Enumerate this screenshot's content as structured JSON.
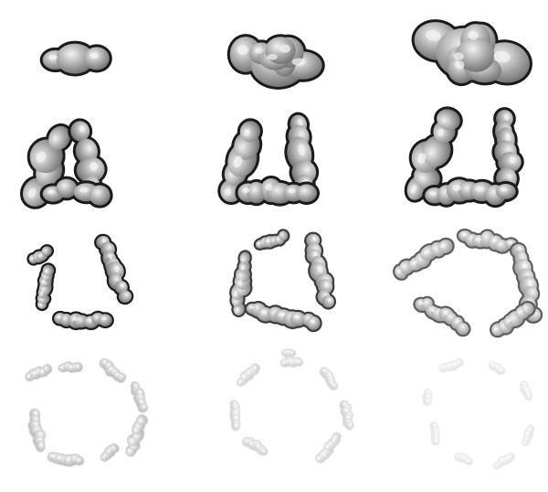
{
  "sheet": {
    "name": "smoke-ring-explosion-spritesheet",
    "rows": 4,
    "columns": 3,
    "frame_count": 12,
    "colors": {
      "outline": "#1a1a1a",
      "fill_dark": "#6e6e6e",
      "fill_mid": "#a8a8a8",
      "highlight": "#f2f2f2",
      "background": "#ffffff"
    },
    "frames": [
      {
        "index": 1,
        "stage": "puff",
        "expansion": 0.05,
        "opacity": 1.0
      },
      {
        "index": 2,
        "stage": "puff",
        "expansion": 0.1,
        "opacity": 1.0
      },
      {
        "index": 3,
        "stage": "puff",
        "expansion": 0.15,
        "opacity": 1.0
      },
      {
        "index": 4,
        "stage": "split",
        "expansion": 0.25,
        "opacity": 1.0
      },
      {
        "index": 5,
        "stage": "split",
        "expansion": 0.35,
        "opacity": 1.0
      },
      {
        "index": 6,
        "stage": "split",
        "expansion": 0.45,
        "opacity": 1.0
      },
      {
        "index": 7,
        "stage": "ring",
        "expansion": 0.6,
        "opacity": 1.0
      },
      {
        "index": 8,
        "stage": "ring",
        "expansion": 0.7,
        "opacity": 0.85
      },
      {
        "index": 9,
        "stage": "ring",
        "expansion": 0.8,
        "opacity": 0.7
      },
      {
        "index": 10,
        "stage": "dissolve",
        "expansion": 0.85,
        "opacity": 0.5
      },
      {
        "index": 11,
        "stage": "dissolve",
        "expansion": 0.9,
        "opacity": 0.35
      },
      {
        "index": 12,
        "stage": "dissolve",
        "expansion": 1.0,
        "opacity": 0.2
      }
    ]
  }
}
